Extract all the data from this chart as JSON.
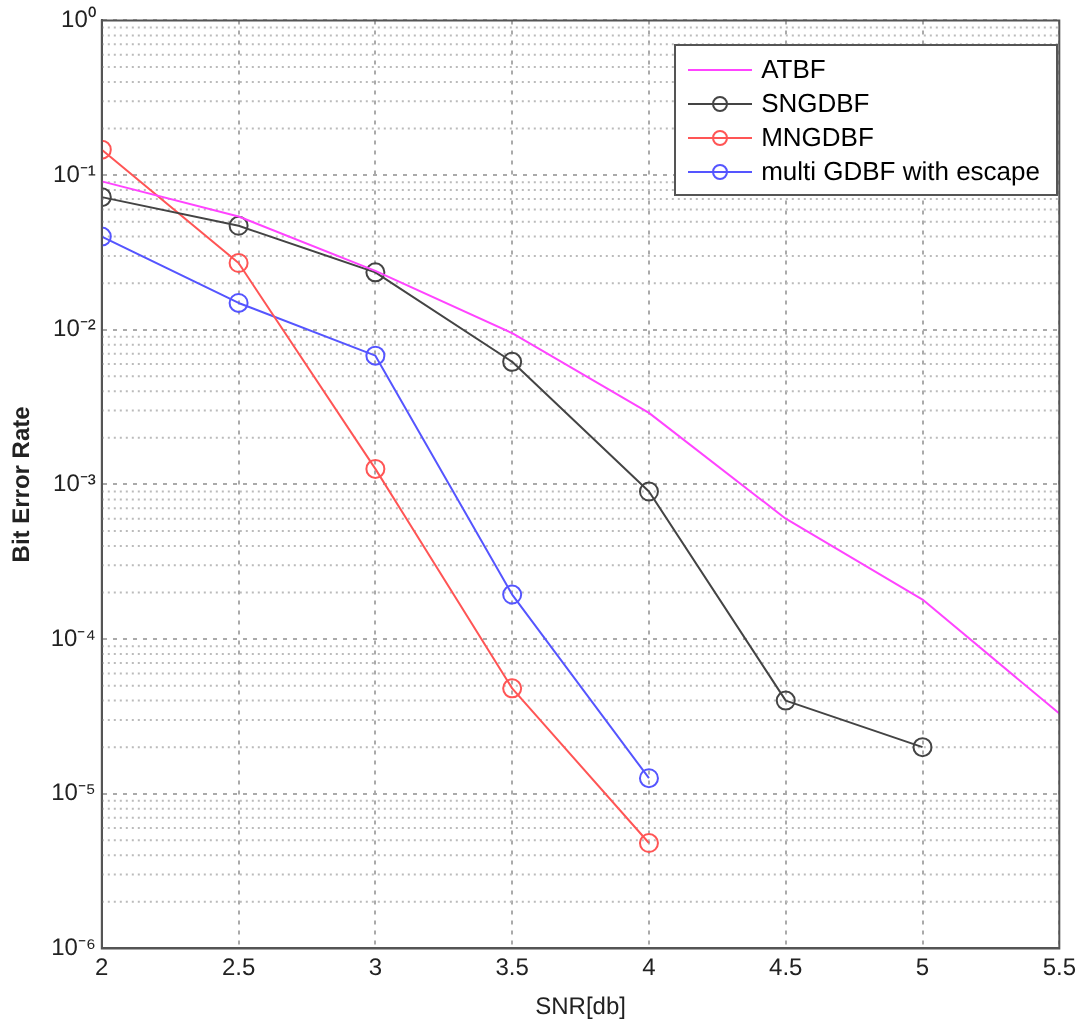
{
  "chart_data": {
    "type": "line",
    "xlabel": "SNR[db]",
    "ylabel": "Bit Error Rate",
    "x": [
      2,
      2.5,
      3,
      3.5,
      4,
      4.5,
      5,
      5.5
    ],
    "series": [
      {
        "name": "ATBF",
        "color": "#ff44ff",
        "marker": "none",
        "values": [
          0.091,
          0.054,
          0.024,
          0.0095,
          0.0029,
          0.0006,
          0.00018,
          3.3e-05
        ]
      },
      {
        "name": "SNGDBF",
        "color": "#444444",
        "marker": "circle",
        "values": [
          0.072,
          0.047,
          0.0235,
          0.0062,
          0.0009,
          4e-05,
          2e-05,
          null
        ]
      },
      {
        "name": "MNGDBF",
        "color": "#ff5555",
        "marker": "circle",
        "values": [
          0.146,
          0.027,
          0.00126,
          4.8e-05,
          4.8e-06,
          null,
          null,
          null
        ]
      },
      {
        "name": "multi GDBF with escape",
        "color": "#5555ff",
        "marker": "circle",
        "values": [
          0.04,
          0.0149,
          0.0068,
          0.000194,
          1.26e-05,
          null,
          null,
          null
        ]
      }
    ],
    "log": "y",
    "xlim": [
      2,
      5.5
    ],
    "xticks": [
      2,
      2.5,
      3,
      3.5,
      4,
      4.5,
      5,
      5.5
    ],
    "ylim": [
      1e-06,
      1
    ],
    "yticks": [
      {
        "value": 1e-06,
        "label": "10⁻⁶"
      },
      {
        "value": 1e-05,
        "label": "10⁻⁵"
      },
      {
        "value": 0.0001,
        "label": "10⁻⁴"
      },
      {
        "value": 0.001,
        "label": "10⁻³"
      },
      {
        "value": 0.01,
        "label": "10⁻²"
      },
      {
        "value": 0.1,
        "label": "10⁻¹"
      },
      {
        "value": 1,
        "label": "10⁰"
      }
    ],
    "grid": true,
    "legend": "top right",
    "line_style": "solid"
  }
}
